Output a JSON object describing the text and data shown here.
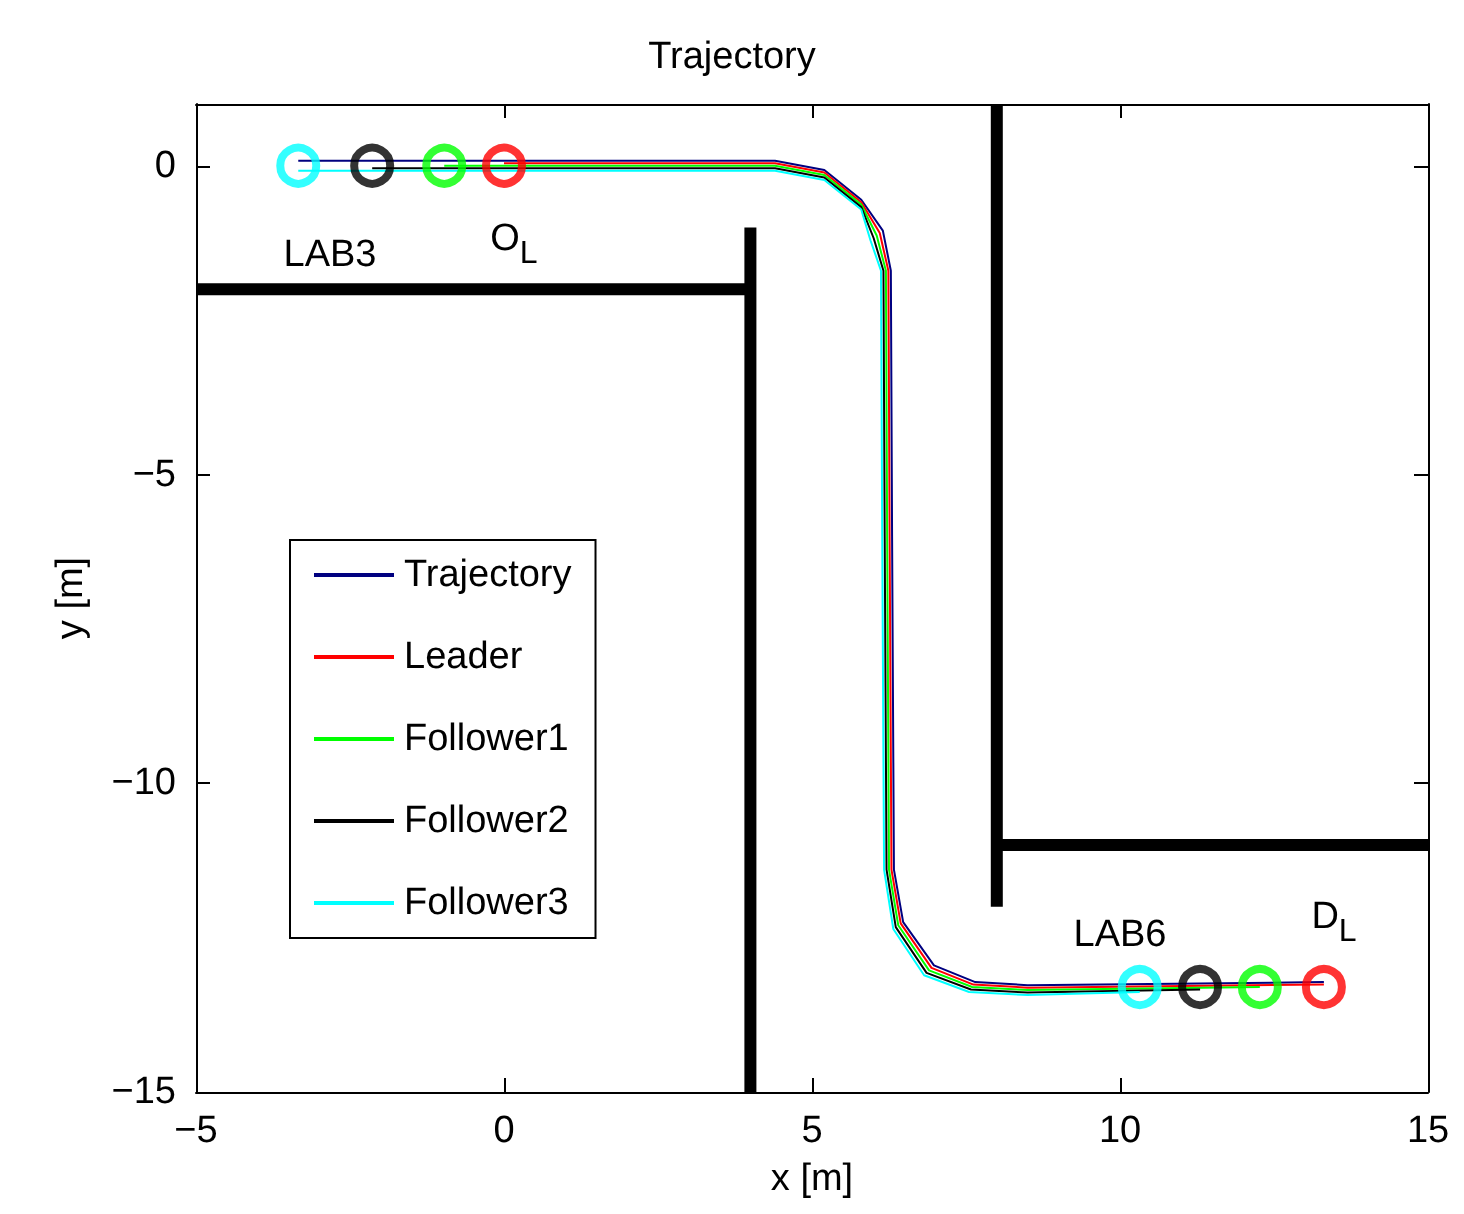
{
  "chart_data": {
    "type": "line",
    "title": "Trajectory",
    "xlabel": "x [m]",
    "ylabel": "y [m]",
    "xlim": [
      -5,
      15
    ],
    "ylim": [
      -15,
      1
    ],
    "xticks": [
      -5,
      0,
      5,
      10,
      15
    ],
    "yticks": [
      -15,
      -10,
      -5,
      0
    ],
    "legend": "left",
    "marker": "none",
    "line_style": "solid",
    "series": [
      {
        "name": "Trajectory",
        "color": "#000080",
        "x": [
          -3.34,
          4.4,
          5.2,
          5.8,
          6.15,
          6.28,
          6.3,
          6.33,
          6.48,
          6.98,
          7.65,
          8.5,
          13.31
        ],
        "values": [
          0.08,
          0.08,
          -0.07,
          -0.55,
          -1.05,
          -1.7,
          -6,
          -11.4,
          -12.25,
          -12.95,
          -13.22,
          -13.27,
          -13.22
        ]
      },
      {
        "name": "Leader",
        "color": "#ff0000",
        "x": [
          0,
          4.4,
          5.2,
          5.8,
          6.1,
          6.24,
          6.26,
          6.29,
          6.44,
          6.94,
          7.62,
          8.5,
          13.31
        ],
        "values": [
          0.04,
          0.04,
          -0.11,
          -0.59,
          -1.09,
          -1.7,
          -6,
          -11.4,
          -12.27,
          -12.99,
          -13.26,
          -13.31,
          -13.26
        ]
      },
      {
        "name": "Follower1",
        "color": "#00ff00",
        "x": [
          -0.97,
          4.4,
          5.2,
          5.8,
          6.05,
          6.2,
          6.22,
          6.25,
          6.4,
          6.9,
          7.6,
          8.5,
          12.27
        ],
        "values": [
          0,
          0,
          -0.15,
          -0.63,
          -1.13,
          -1.7,
          -6,
          -11.4,
          -12.3,
          -13.03,
          -13.3,
          -13.35,
          -13.3
        ]
      },
      {
        "name": "Follower2",
        "color": "#000000",
        "x": [
          -2.14,
          4.4,
          5.2,
          5.8,
          6.0,
          6.16,
          6.18,
          6.21,
          6.36,
          6.86,
          7.58,
          8.5,
          11.3
        ],
        "values": [
          -0.04,
          -0.04,
          -0.19,
          -0.67,
          -1.17,
          -1.7,
          -6,
          -11.4,
          -12.33,
          -13.07,
          -13.34,
          -13.39,
          -13.34
        ]
      },
      {
        "name": "Follower3",
        "color": "#00ffff",
        "x": [
          -3.34,
          4.4,
          5.2,
          5.8,
          5.95,
          6.12,
          6.14,
          6.17,
          6.32,
          6.82,
          7.55,
          8.5,
          10.32
        ],
        "values": [
          -0.08,
          -0.08,
          -0.23,
          -0.71,
          -1.21,
          -1.7,
          -6,
          -11.4,
          -12.36,
          -13.11,
          -13.38,
          -13.43,
          -13.38
        ]
      },
      {
        "type": "line",
        "color": "#000000",
        "x": [
          -5,
          4,
          null,
          4,
          4,
          null,
          8,
          8,
          null,
          8,
          15
        ],
        "values": [
          -2,
          -2,
          null,
          -1,
          -15,
          null,
          1,
          -12,
          null,
          -11,
          -11
        ]
      },
      {
        "type": "scatter",
        "marker": "circle",
        "color": "#ff0000",
        "x": [
          0,
          13.31
        ],
        "values": [
          0,
          -13.3
        ]
      },
      {
        "type": "scatter",
        "marker": "circle",
        "color": "#00ff00",
        "x": [
          -0.97,
          12.27
        ],
        "values": [
          0,
          -13.3
        ]
      },
      {
        "type": "scatter",
        "marker": "circle",
        "color": "#000000",
        "x": [
          -2.14,
          11.3
        ],
        "values": [
          0,
          -13.3
        ]
      },
      {
        "type": "scatter",
        "marker": "circle",
        "color": "#00ffff",
        "x": [
          -3.34,
          10.32
        ],
        "values": [
          0,
          -13.3
        ]
      }
    ],
    "annotations": [
      "LAB3",
      "O$_{L}$",
      "LAB6",
      "D$_{L}$"
    ]
  }
}
